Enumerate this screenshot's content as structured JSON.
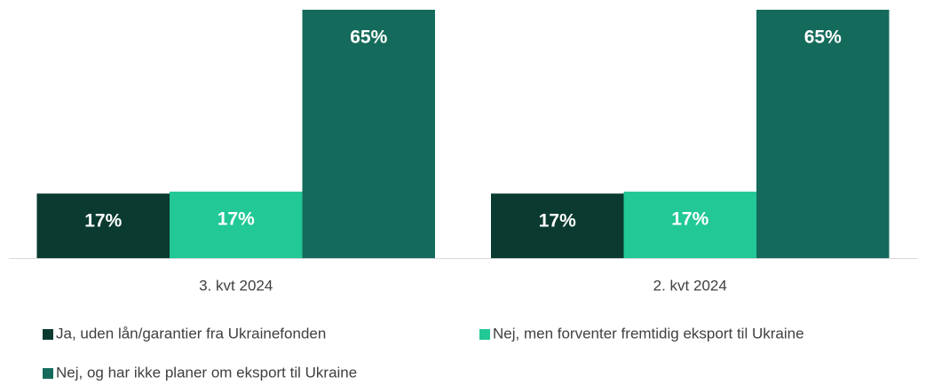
{
  "chart_data": {
    "type": "bar",
    "categories": [
      "3. kvt 2024",
      "2. kvt 2024"
    ],
    "series": [
      {
        "name": "Ja, uden lån/garantier fra Ukrainefonden",
        "color": "#0b3b30",
        "values": [
          16.9,
          16.9
        ],
        "value_labels": [
          "17%",
          "17%"
        ]
      },
      {
        "name": "Nej, men forventer fremtidig eksport til Ukraine",
        "color": "#22c896",
        "values": [
          17.4,
          17.4
        ],
        "value_labels": [
          "17%",
          "17%"
        ]
      },
      {
        "name": "Nej, og har ikke planer om eksport til Ukraine",
        "color": "#156b5b",
        "values": [
          65,
          65
        ],
        "value_labels": [
          "65%",
          "65%"
        ]
      }
    ]
  }
}
